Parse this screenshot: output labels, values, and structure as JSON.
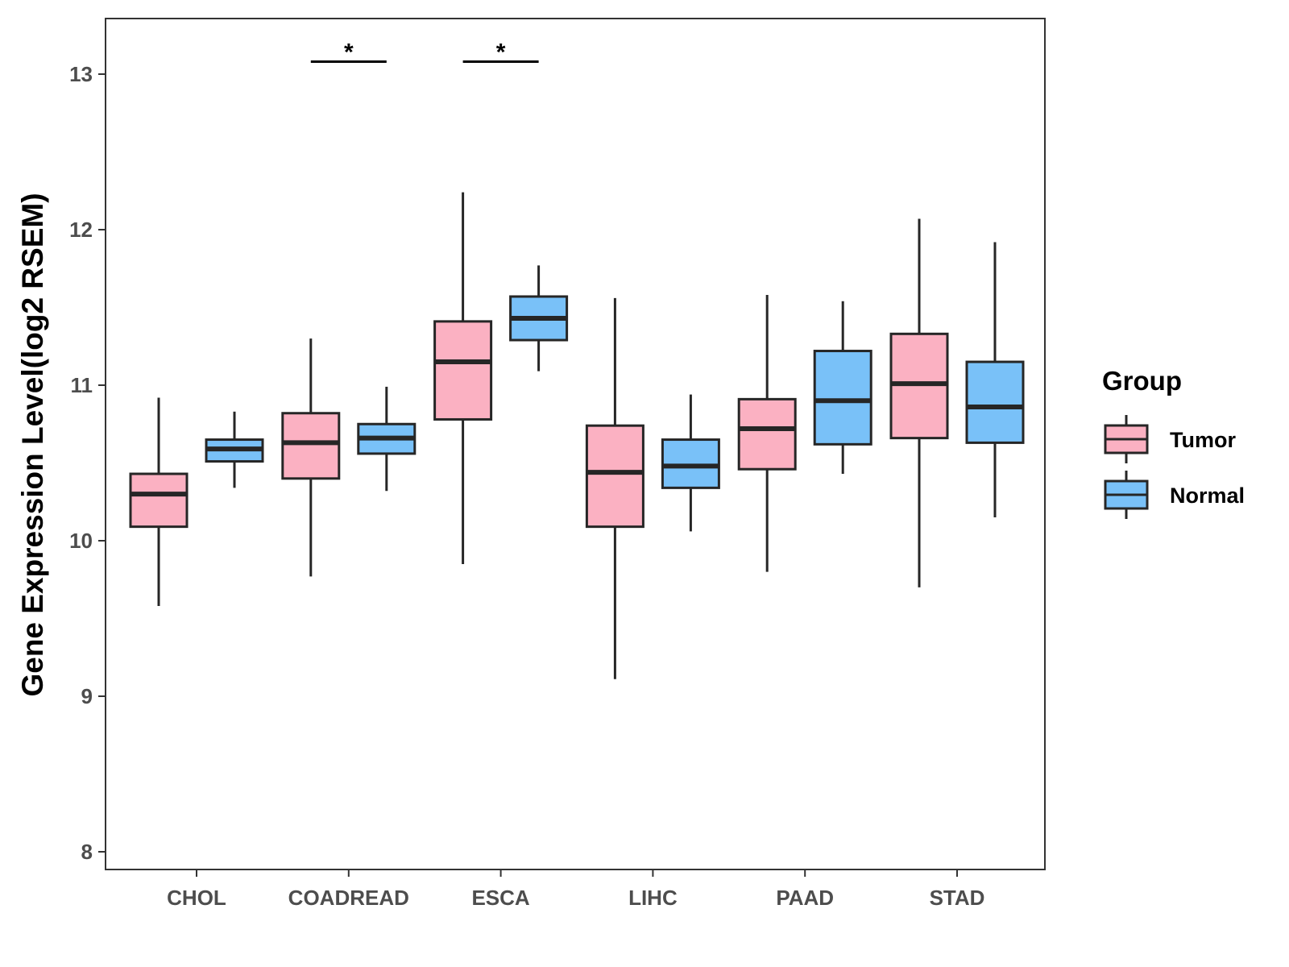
{
  "chart_data": {
    "type": "box",
    "title": "",
    "xlabel": "",
    "ylabel": "Gene Expression Level(log2 RSEM)",
    "ylim": [
      7.65,
      13.35
    ],
    "yticks": [
      8,
      9,
      10,
      11,
      12,
      13
    ],
    "grid": false,
    "categories": [
      "CHOL",
      "COADREAD",
      "ESCA",
      "LIHC",
      "PAAD",
      "STAD"
    ],
    "legend": {
      "title": "Group",
      "position": "right",
      "entries": [
        "Tumor",
        "Normal"
      ]
    },
    "series": [
      {
        "name": "Tumor",
        "color": "#fbb1c2",
        "boxes": [
          {
            "min": 9.58,
            "q1": 10.09,
            "median": 10.3,
            "q3": 10.43,
            "max": 10.92
          },
          {
            "min": 9.77,
            "q1": 10.4,
            "median": 10.63,
            "q3": 10.82,
            "max": 11.3
          },
          {
            "min": 9.85,
            "q1": 10.78,
            "median": 11.15,
            "q3": 11.41,
            "max": 12.24
          },
          {
            "min": 9.11,
            "q1": 10.09,
            "median": 10.44,
            "q3": 10.74,
            "max": 11.56
          },
          {
            "min": 9.8,
            "q1": 10.46,
            "median": 10.72,
            "q3": 10.91,
            "max": 11.58
          },
          {
            "min": 9.7,
            "q1": 10.66,
            "median": 11.01,
            "q3": 11.33,
            "max": 12.07
          }
        ]
      },
      {
        "name": "Normal",
        "color": "#79c1f8",
        "boxes": [
          {
            "min": 10.34,
            "q1": 10.51,
            "median": 10.59,
            "q3": 10.65,
            "max": 10.83
          },
          {
            "min": 10.32,
            "q1": 10.56,
            "median": 10.66,
            "q3": 10.75,
            "max": 10.99
          },
          {
            "min": 11.09,
            "q1": 11.29,
            "median": 11.43,
            "q3": 11.57,
            "max": 11.77
          },
          {
            "min": 10.06,
            "q1": 10.34,
            "median": 10.48,
            "q3": 10.65,
            "max": 10.94
          },
          {
            "min": 10.43,
            "q1": 10.62,
            "median": 10.9,
            "q3": 11.22,
            "max": 11.54
          },
          {
            "min": 10.15,
            "q1": 10.63,
            "median": 10.86,
            "q3": 11.15,
            "max": 11.92
          }
        ]
      }
    ],
    "annotations": [
      {
        "category": "COADREAD",
        "label": "*",
        "y": 13.08
      },
      {
        "category": "ESCA",
        "label": "*",
        "y": 13.08
      }
    ]
  }
}
